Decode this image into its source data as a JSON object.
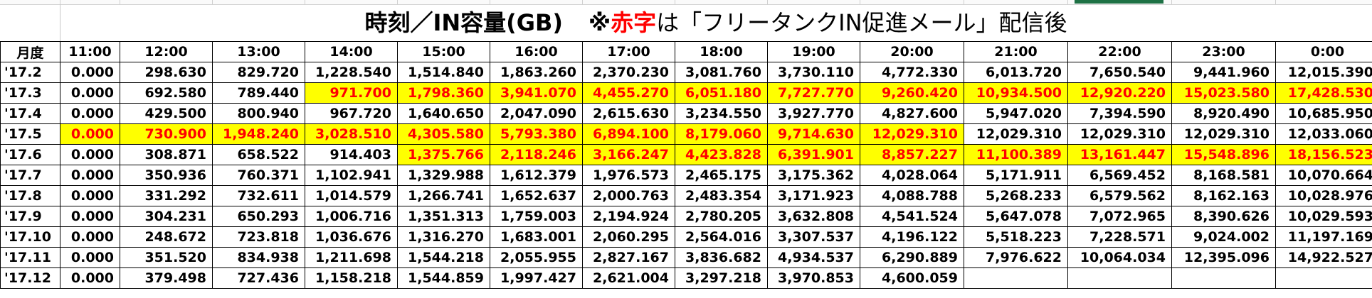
{
  "title": {
    "main": "時刻／IN容量(GB)",
    "note_prefix": "※",
    "note_red": "赤字",
    "note_rest": "は「フリータンクIN促進メール」配信後"
  },
  "colors": {
    "highlight_bg": "#ffff00",
    "highlight_text": "#ff0000",
    "selected_cell": "#1e7145"
  },
  "table": {
    "headers": [
      "月度",
      "11:00",
      "12:00",
      "13:00",
      "14:00",
      "15:00",
      "16:00",
      "17:00",
      "18:00",
      "19:00",
      "20:00",
      "21:00",
      "22:00",
      "23:00",
      "0:00"
    ],
    "rows": [
      {
        "month": "'17.2",
        "values": [
          "0.000",
          "298.630",
          "829.720",
          "1,228.540",
          "1,514.840",
          "1,863.260",
          "2,370.230",
          "3,081.760",
          "3,730.110",
          "4,772.330",
          "6,013.720",
          "7,650.540",
          "9,441.960",
          "12,015.390"
        ],
        "highlight_from": -1
      },
      {
        "month": "'17.3",
        "values": [
          "0.000",
          "692.580",
          "789.440",
          "971.700",
          "1,798.360",
          "3,941.070",
          "4,455.270",
          "6,051.180",
          "7,727.770",
          "9,260.420",
          "10,934.500",
          "12,920.220",
          "15,023.580",
          "17,428.530"
        ],
        "highlight_from": 3
      },
      {
        "month": "'17.4",
        "values": [
          "0.000",
          "429.500",
          "800.940",
          "967.720",
          "1,640.650",
          "2,047.090",
          "2,615.630",
          "3,234.550",
          "3,927.770",
          "4,827.600",
          "5,947.020",
          "7,394.590",
          "8,920.490",
          "10,685.950"
        ],
        "highlight_from": -1
      },
      {
        "month": "'17.5",
        "values": [
          "0.000",
          "730.900",
          "1,948.240",
          "3,028.510",
          "4,305.580",
          "5,793.380",
          "6,894.100",
          "8,179.060",
          "9,714.630",
          "12,029.310",
          "12,029.310",
          "12,029.310",
          "12,029.310",
          "12,033.060"
        ],
        "highlight_from": 0,
        "highlight_to": 9
      },
      {
        "month": "'17.6",
        "values": [
          "0.000",
          "308.871",
          "658.522",
          "914.403",
          "1,375.766",
          "2,118.246",
          "3,166.247",
          "4,423.828",
          "6,391.901",
          "8,857.227",
          "11,100.389",
          "13,161.447",
          "15,548.896",
          "18,156.523"
        ],
        "highlight_from": 4
      },
      {
        "month": "'17.7",
        "values": [
          "0.000",
          "350.936",
          "760.371",
          "1,102.941",
          "1,329.988",
          "1,612.379",
          "1,976.573",
          "2,465.175",
          "3,175.362",
          "4,028.064",
          "5,171.911",
          "6,569.452",
          "8,168.581",
          "10,070.664"
        ],
        "highlight_from": -1
      },
      {
        "month": "'17.8",
        "values": [
          "0.000",
          "331.292",
          "732.611",
          "1,014.579",
          "1,266.741",
          "1,652.637",
          "2,000.763",
          "2,483.354",
          "3,171.923",
          "4,088.788",
          "5,268.233",
          "6,579.562",
          "8,162.163",
          "10,028.976"
        ],
        "highlight_from": -1
      },
      {
        "month": "'17.9",
        "values": [
          "0.000",
          "304.231",
          "650.293",
          "1,006.716",
          "1,351.313",
          "1,759.003",
          "2,194.924",
          "2,780.205",
          "3,632.808",
          "4,541.524",
          "5,647.078",
          "7,072.965",
          "8,390.626",
          "10,029.593"
        ],
        "highlight_from": -1
      },
      {
        "month": "'17.10",
        "values": [
          "0.000",
          "248.672",
          "723.818",
          "1,036.676",
          "1,316.270",
          "1,683.001",
          "2,060.295",
          "2,564.016",
          "3,307.537",
          "4,196.122",
          "5,518.223",
          "7,228.571",
          "9,024.002",
          "11,197.169"
        ],
        "highlight_from": -1
      },
      {
        "month": "'17.11",
        "values": [
          "0.000",
          "351.520",
          "834.938",
          "1,211.698",
          "1,544.218",
          "2,055.955",
          "2,827.167",
          "3,836.682",
          "4,934.537",
          "6,290.889",
          "7,976.622",
          "10,064.034",
          "12,395.096",
          "14,922.527"
        ],
        "highlight_from": -1
      },
      {
        "month": "'17.12",
        "values": [
          "0.000",
          "379.498",
          "727.436",
          "1,158.218",
          "1,544.859",
          "1,997.427",
          "2,621.004",
          "3,297.218",
          "3,970.853",
          "4,600.059",
          "",
          "",
          "",
          ""
        ],
        "highlight_from": -1
      }
    ]
  }
}
